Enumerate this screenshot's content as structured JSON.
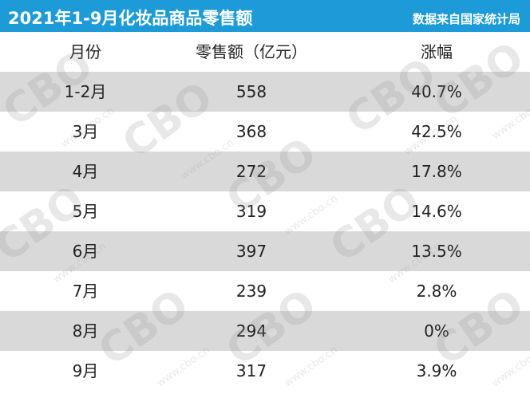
{
  "header": {
    "title": "2021年1-9月化妆品商品零售额",
    "source": "数据来自国家统计局"
  },
  "watermark": {
    "logo": "CBO",
    "url": "www.cbo.cn"
  },
  "table": {
    "columns": [
      "月份",
      "零售额（亿元）",
      "涨幅"
    ],
    "rows": [
      [
        "1-2月",
        "558",
        "40.7%"
      ],
      [
        "3月",
        "368",
        "42.5%"
      ],
      [
        "4月",
        "272",
        "17.8%"
      ],
      [
        "5月",
        "319",
        "14.6%"
      ],
      [
        "6月",
        "397",
        "13.5%"
      ],
      [
        "7月",
        "239",
        "2.8%"
      ],
      [
        "8月",
        "294",
        "0%"
      ],
      [
        "9月",
        "317",
        "3.9%"
      ]
    ]
  }
}
